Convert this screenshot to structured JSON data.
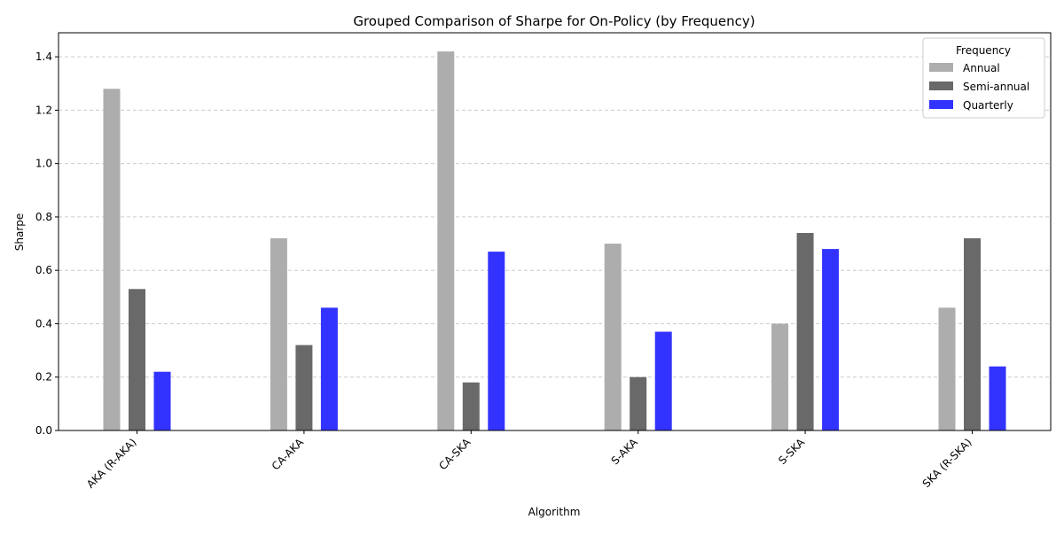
{
  "chart_data": {
    "type": "bar",
    "title": "Grouped Comparison of Sharpe for On-Policy (by Frequency)",
    "xlabel": "Algorithm",
    "ylabel": "Sharpe",
    "categories": [
      "AKA (R-AKA)",
      "CA-AKA",
      "CA-SKA",
      "S-AKA",
      "S-SKA",
      "SKA (R-SKA)"
    ],
    "series": [
      {
        "name": "Annual",
        "color": "#adadad",
        "values": [
          1.28,
          0.72,
          1.42,
          0.7,
          0.4,
          0.46
        ]
      },
      {
        "name": "Semi-annual",
        "color": "#696969",
        "values": [
          0.53,
          0.32,
          0.18,
          0.2,
          0.74,
          0.72
        ]
      },
      {
        "name": "Quarterly",
        "color": "#3333ff",
        "values": [
          0.22,
          0.46,
          0.67,
          0.37,
          0.68,
          0.24
        ]
      }
    ],
    "ylim": [
      0,
      1.49
    ],
    "yticks": [
      "0.0",
      "0.2",
      "0.4",
      "0.6",
      "0.8",
      "1.0",
      "1.2",
      "1.4"
    ],
    "grid": "y-dashed",
    "legend": {
      "title": "Frequency",
      "placement": "top-right"
    }
  }
}
